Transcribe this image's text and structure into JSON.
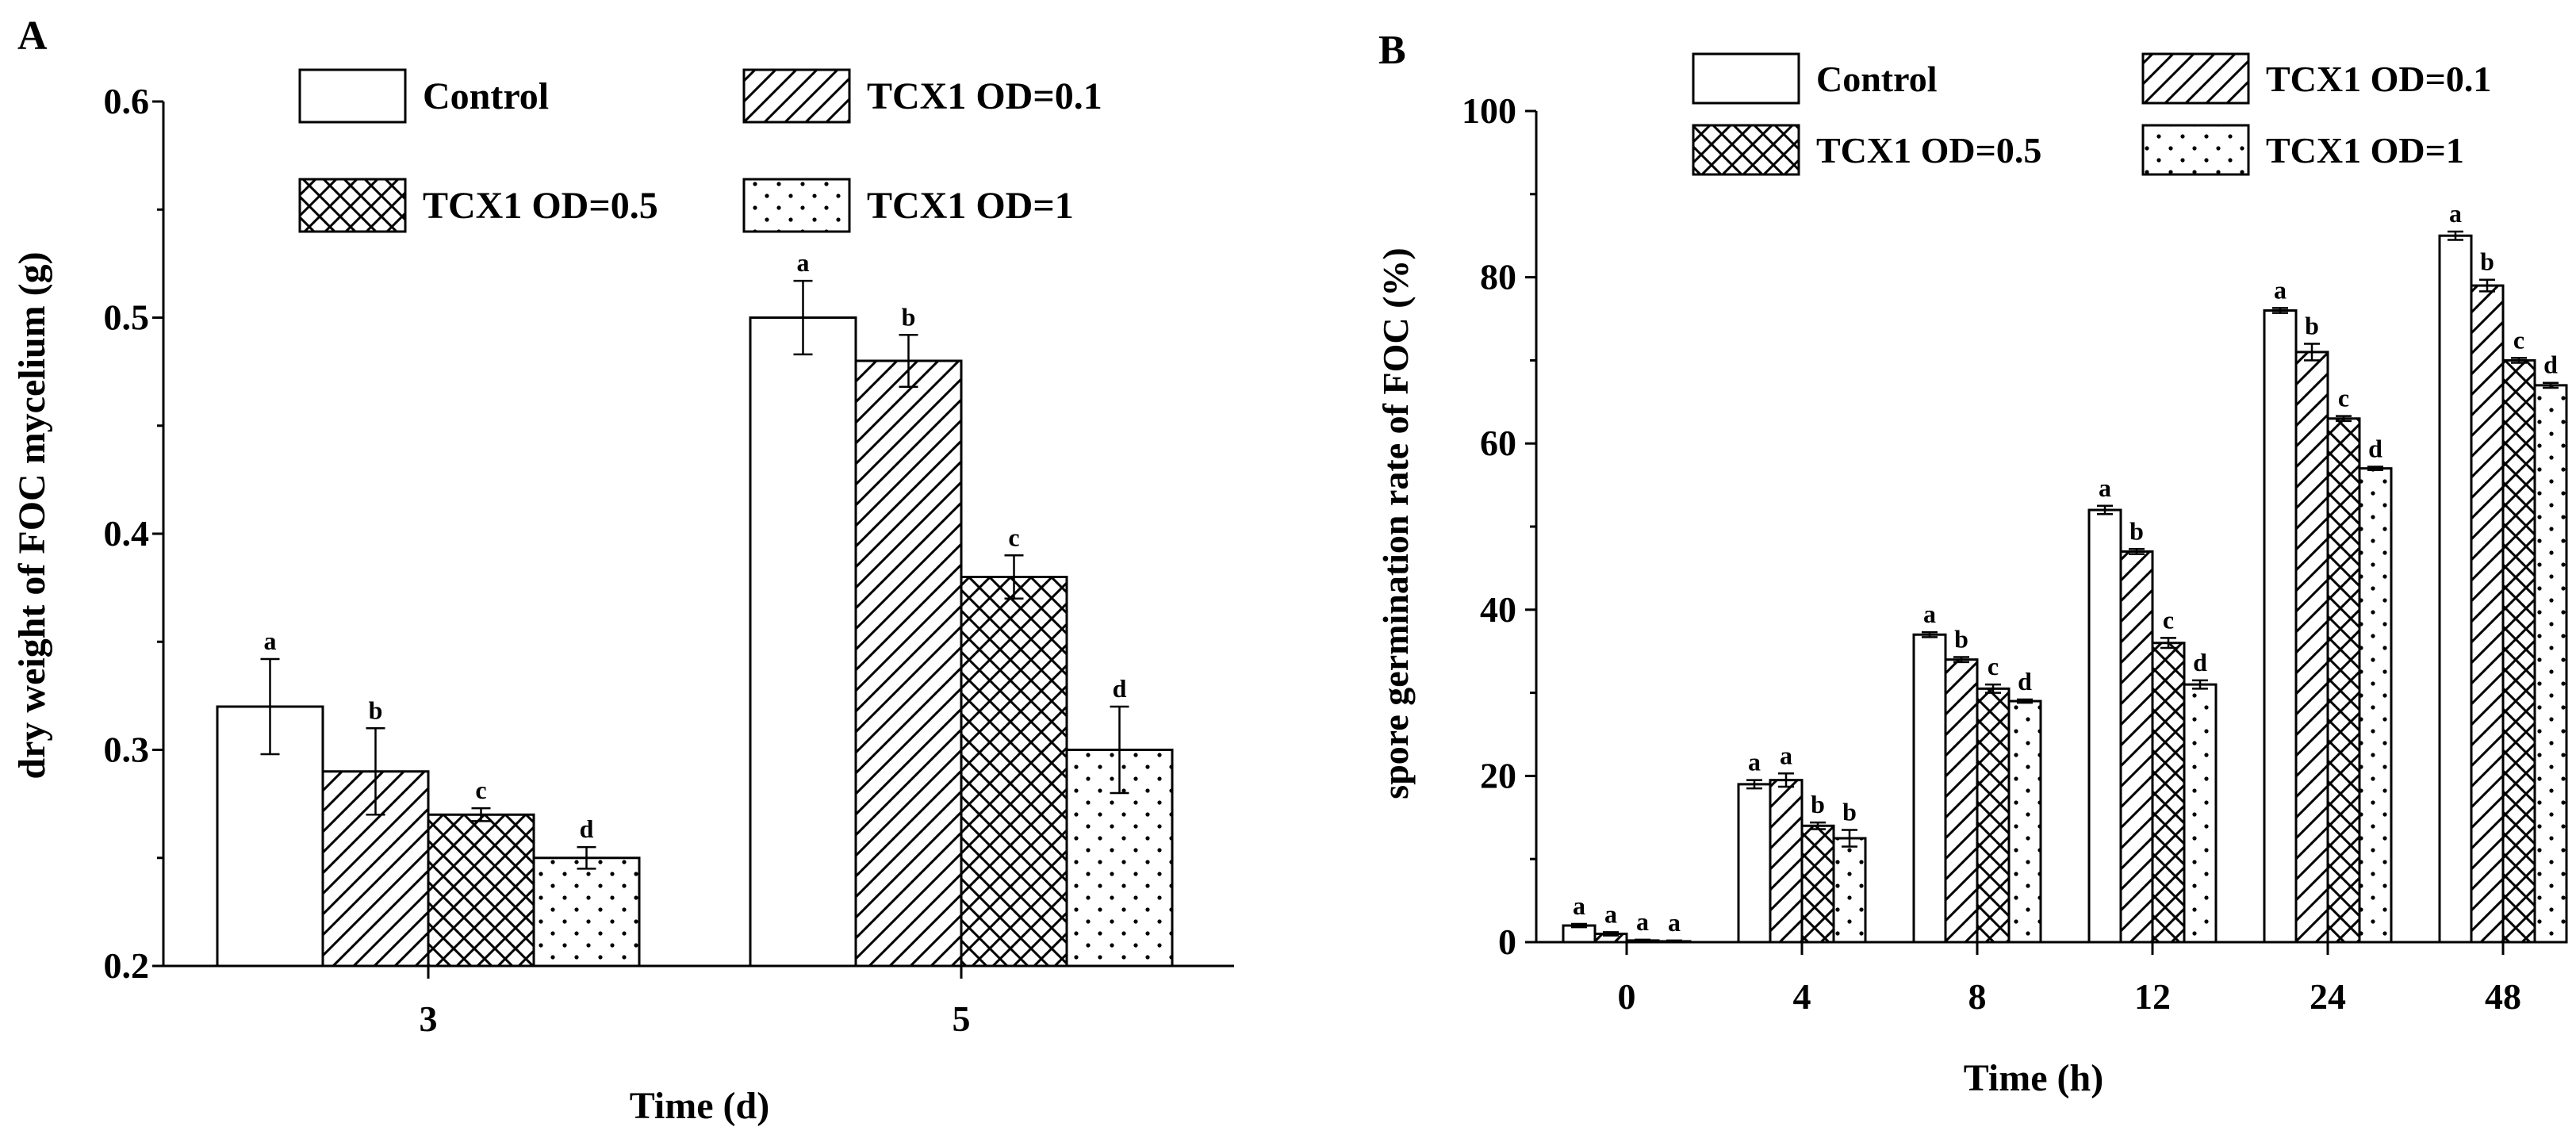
{
  "chart_data": [
    {
      "panel_label": "A",
      "type": "bar",
      "xlabel": "Time (d)",
      "ylabel": "dry weight of FOC mycelium (g)",
      "ylim": [
        0.2,
        0.6
      ],
      "yticks": [
        "0.2",
        "0.3",
        "0.4",
        "0.5",
        "0.6"
      ],
      "categories": [
        "3",
        "5"
      ],
      "legend": {
        "placement": "top",
        "columns": 2
      },
      "series": [
        {
          "name": "Control",
          "pattern": "open",
          "values": [
            0.32,
            0.5
          ],
          "errors": [
            0.022,
            0.017
          ],
          "letters": [
            "a",
            "a"
          ]
        },
        {
          "name": "TCX1 OD=0.1",
          "pattern": "diagonal",
          "values": [
            0.29,
            0.48
          ],
          "errors": [
            0.02,
            0.012
          ],
          "letters": [
            "b",
            "b"
          ]
        },
        {
          "name": "TCX1 OD=0.5",
          "pattern": "crosshatch",
          "values": [
            0.27,
            0.38
          ],
          "errors": [
            0.003,
            0.01
          ],
          "letters": [
            "c",
            "c"
          ]
        },
        {
          "name": "TCX1 OD=1",
          "pattern": "dots",
          "values": [
            0.25,
            0.3
          ],
          "errors": [
            0.005,
            0.02
          ],
          "letters": [
            "d",
            "d"
          ]
        }
      ]
    },
    {
      "panel_label": "B",
      "type": "bar",
      "xlabel": "Time (h)",
      "ylabel": "spore germination rate of FOC (%)",
      "ylim": [
        0,
        100
      ],
      "yticks": [
        "0",
        "20",
        "40",
        "60",
        "80",
        "100"
      ],
      "categories": [
        "0",
        "4",
        "8",
        "12",
        "24",
        "48"
      ],
      "legend": {
        "placement": "top",
        "columns": 2
      },
      "series": [
        {
          "name": "Control",
          "pattern": "open",
          "values": [
            2,
            19,
            37,
            52,
            76,
            85
          ],
          "errors": [
            0.2,
            0.5,
            0.3,
            0.5,
            0.3,
            0.5
          ],
          "letters": [
            "a",
            "a",
            "a",
            "a",
            "a",
            "a"
          ]
        },
        {
          "name": "TCX1 OD=0.1",
          "pattern": "diagonal",
          "values": [
            1,
            19.5,
            34,
            47,
            71,
            79
          ],
          "errors": [
            0.2,
            0.8,
            0.3,
            0.3,
            1.0,
            0.7
          ],
          "letters": [
            "a",
            "a",
            "b",
            "b",
            "b",
            "b"
          ]
        },
        {
          "name": "TCX1 OD=0.5",
          "pattern": "crosshatch",
          "values": [
            0.2,
            14,
            30.5,
            36,
            63,
            70
          ],
          "errors": [
            0.1,
            0.4,
            0.5,
            0.6,
            0.3,
            0.3
          ],
          "letters": [
            "a",
            "b",
            "c",
            "c",
            "c",
            "c"
          ]
        },
        {
          "name": "TCX1 OD=1",
          "pattern": "dots",
          "values": [
            0.1,
            12.5,
            29,
            31,
            57,
            67
          ],
          "errors": [
            0.1,
            1.0,
            0.2,
            0.5,
            0.2,
            0.3
          ],
          "letters": [
            "a",
            "b",
            "d",
            "d",
            "d",
            "d"
          ]
        }
      ]
    }
  ]
}
